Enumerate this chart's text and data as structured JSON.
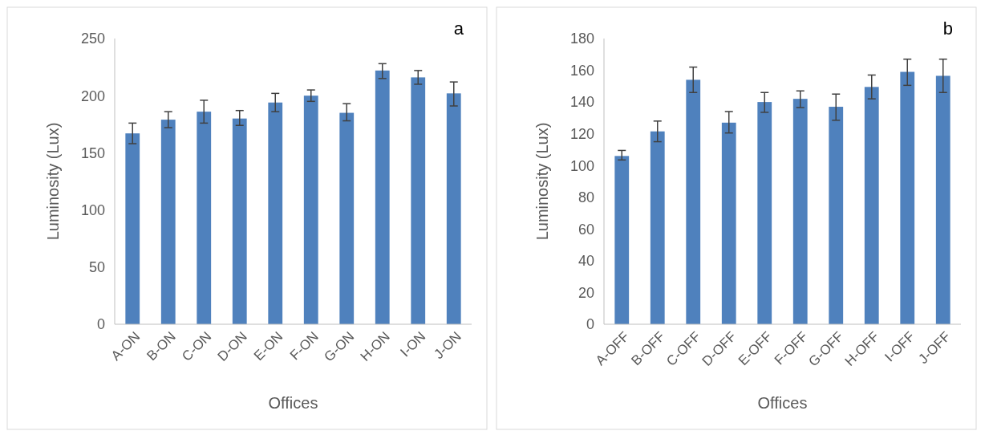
{
  "chart_data": [
    {
      "type": "bar",
      "xlabel": "Offices",
      "ylabel": "Luminosity (Lux)",
      "annotations": [
        "a"
      ],
      "categories": [
        "A-ON",
        "B-ON",
        "C-ON",
        "D-ON",
        "E-ON",
        "F-ON",
        "G-ON",
        "H-ON",
        "I-ON",
        "J-ON"
      ],
      "color": "#4f81bd",
      "values": [
        167,
        179,
        186,
        180,
        194,
        200,
        185,
        222,
        216,
        202
      ],
      "errors": [
        [
          158,
          176
        ],
        [
          172,
          186
        ],
        [
          176,
          196
        ],
        [
          174,
          187
        ],
        [
          186,
          202
        ],
        [
          195,
          205
        ],
        [
          178,
          193
        ],
        [
          215,
          228
        ],
        [
          210,
          222
        ],
        [
          191,
          212
        ]
      ],
      "ylim": [
        0,
        250
      ],
      "yticks": [
        0,
        50,
        100,
        150,
        200,
        250
      ],
      "grid": false
    },
    {
      "type": "bar",
      "xlabel": "Offices",
      "ylabel": "Luminosity (Lux)",
      "annotations": [
        "b"
      ],
      "categories": [
        "A-OFF",
        "B-OFF",
        "C-OFF",
        "D-OFF",
        "E-OFF",
        "F-OFF",
        "G-OFF",
        "H-OFF",
        "I-OFF",
        "J-OFF"
      ],
      "color": "#4f81bd",
      "values": [
        106,
        121.5,
        154,
        127,
        140,
        142,
        137,
        149.5,
        159,
        156.5
      ],
      "errors": [
        [
          103.5,
          109.5
        ],
        [
          115,
          128
        ],
        [
          146,
          162
        ],
        [
          120.5,
          134
        ],
        [
          133.5,
          146
        ],
        [
          136.5,
          147
        ],
        [
          128.5,
          145
        ],
        [
          142,
          157
        ],
        [
          150.5,
          167
        ],
        [
          146,
          167
        ]
      ],
      "ylim": [
        0,
        180
      ],
      "yticks": [
        0,
        20,
        40,
        60,
        80,
        100,
        120,
        140,
        160,
        180
      ],
      "grid": false
    }
  ]
}
